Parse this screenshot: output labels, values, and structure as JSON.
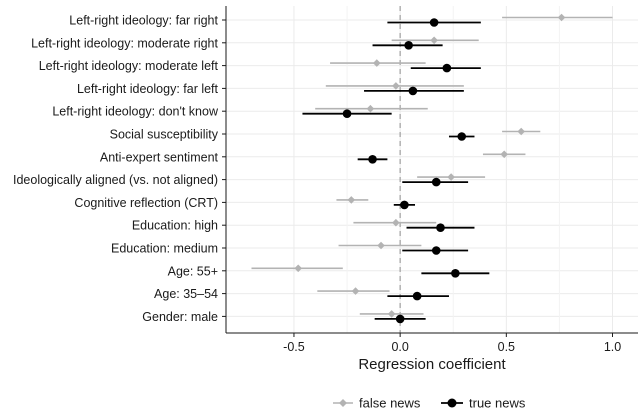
{
  "chart_data": {
    "type": "scatter",
    "subtype": "coefficient-plot",
    "title": "",
    "xlabel": "Regression coefficient",
    "ylabel": "",
    "xlim": [
      -0.82,
      1.12
    ],
    "xticks": [
      -0.5,
      0.0,
      0.5,
      1.0
    ],
    "xtick_labels": [
      "-0.5",
      "0.0",
      "0.5",
      "1.0"
    ],
    "reference_line": 0,
    "grid": true,
    "legend_position": "bottom",
    "categories": [
      "Left-right ideology: far right",
      "Left-right ideology: moderate right",
      "Left-right ideology: moderate left",
      "Left-right ideology: far left",
      "Left-right ideology: don't know",
      "Social susceptibility",
      "Anti-expert sentiment",
      "Ideologically aligned (vs. not aligned)",
      "Cognitive reflection (CRT)",
      "Education: high",
      "Education: medium",
      "Age: 55+",
      "Age: 35–54",
      "Gender: male"
    ],
    "series": [
      {
        "name": "false news",
        "color": "#b3b3b3",
        "estimates": [
          0.76,
          0.16,
          -0.11,
          -0.02,
          -0.14,
          0.57,
          0.49,
          0.24,
          -0.23,
          -0.02,
          -0.09,
          -0.48,
          -0.21,
          -0.04
        ],
        "lower": [
          0.48,
          -0.04,
          -0.33,
          -0.35,
          -0.4,
          0.48,
          0.39,
          0.08,
          -0.3,
          -0.22,
          -0.29,
          -0.7,
          -0.39,
          -0.19
        ],
        "upper": [
          1.0,
          0.37,
          0.12,
          0.3,
          0.13,
          0.66,
          0.59,
          0.4,
          -0.15,
          0.17,
          0.1,
          -0.27,
          -0.05,
          0.11
        ]
      },
      {
        "name": "true news",
        "color": "#000000",
        "estimates": [
          0.16,
          0.04,
          0.22,
          0.06,
          -0.25,
          0.29,
          -0.13,
          0.17,
          0.02,
          0.19,
          0.17,
          0.26,
          0.08,
          0.0
        ],
        "lower": [
          -0.06,
          -0.13,
          0.05,
          -0.17,
          -0.46,
          0.23,
          -0.2,
          0.01,
          -0.03,
          0.03,
          0.01,
          0.1,
          -0.06,
          -0.12
        ],
        "upper": [
          0.38,
          0.2,
          0.38,
          0.3,
          -0.04,
          0.35,
          -0.06,
          0.32,
          0.07,
          0.35,
          0.32,
          0.42,
          0.23,
          0.12
        ]
      }
    ]
  }
}
